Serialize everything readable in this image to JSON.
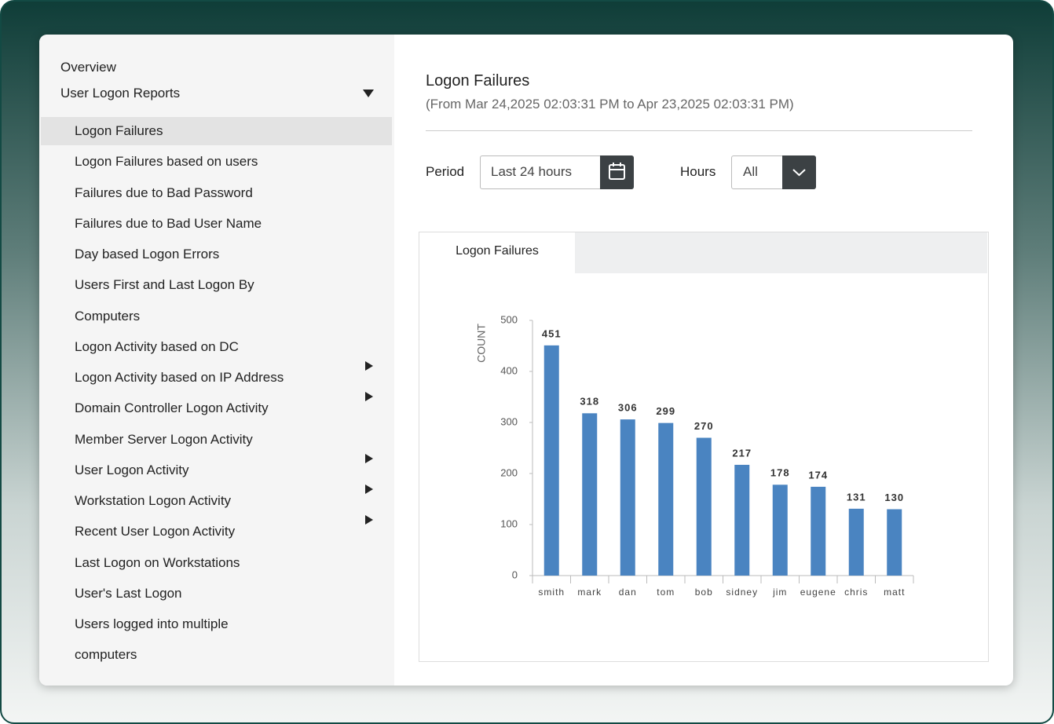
{
  "sidebar": {
    "overview": "Overview",
    "section": "User Logon Reports",
    "items": [
      {
        "lines": [
          "Logon Failures"
        ],
        "selected": true
      },
      {
        "lines": [
          "Logon Failures based on users"
        ]
      },
      {
        "lines": [
          "Failures due to Bad Password"
        ]
      },
      {
        "lines": [
          "Failures due to Bad User Name"
        ]
      },
      {
        "lines": [
          "Day based Logon Errors"
        ]
      },
      {
        "lines": [
          "Users First and Last Logon By",
          "Computers"
        ]
      },
      {
        "lines": [
          "Logon Activity based on DC"
        ]
      },
      {
        "lines": [
          "Logon Activity based on IP Address"
        ],
        "submenu": true
      },
      {
        "lines": [
          "Domain Controller Logon Activity"
        ],
        "submenu": true
      },
      {
        "lines": [
          "Member Server Logon Activity"
        ]
      },
      {
        "lines": [
          "User Logon Activity"
        ],
        "submenu": true
      },
      {
        "lines": [
          "Workstation Logon Activity"
        ],
        "submenu": true
      },
      {
        "lines": [
          "Recent User Logon Activity"
        ],
        "submenu": true
      },
      {
        "lines": [
          "Last Logon on Workstations"
        ]
      },
      {
        "lines": [
          "User's Last Logon"
        ]
      },
      {
        "lines": [
          "Users logged into multiple",
          "computers"
        ]
      }
    ]
  },
  "header": {
    "title": "Logon Failures",
    "subtitle": "(From Mar 24,2025 02:03:31 PM to Apr 23,2025 02:03:31 PM)"
  },
  "filters": {
    "period_label": "Period",
    "period_value": "Last 24 hours",
    "hours_label": "Hours",
    "hours_value": "All"
  },
  "tab": "Logon Failures",
  "chart_data": {
    "type": "bar",
    "y_label": "COUNT",
    "categories": [
      "smith",
      "mark",
      "dan",
      "tom",
      "bob",
      "sidney",
      "jim",
      "eugene",
      "chris",
      "matt"
    ],
    "values": [
      451,
      318,
      306,
      299,
      270,
      217,
      178,
      174,
      131,
      130
    ],
    "color": "#4a84c1",
    "ylim": [
      0,
      500
    ],
    "yticks": [
      0,
      100,
      200,
      300,
      400,
      500
    ],
    "value_labels_shown": true
  }
}
